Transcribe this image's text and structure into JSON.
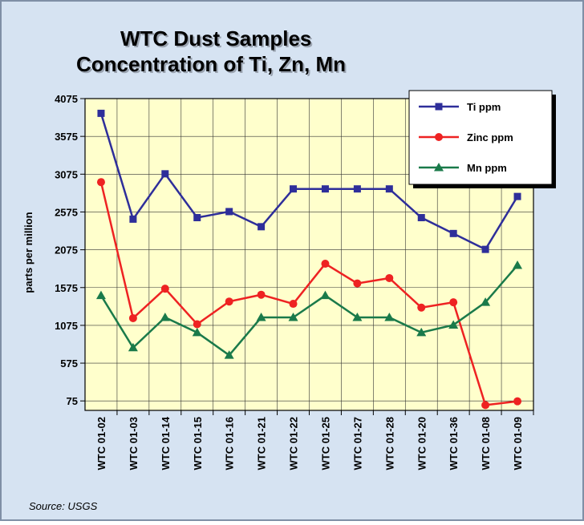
{
  "chart_data": {
    "type": "line",
    "title": "WTC Dust Samples",
    "subtitle": "Concentration of Ti, Zn, Mn",
    "y_label": "parts per million",
    "source": "Source:  USGS",
    "categories": [
      "WTC 01-02",
      "WTC 01-03",
      "WTC 01-14",
      "WTC 01-15",
      "WTC 01-16",
      "WTC 01-21",
      "WTC 01-22",
      "WTC 01-25",
      "WTC 01-27",
      "WTC 01-28",
      "WTC 01-20",
      "WTC 01-36",
      "WTC 01-08",
      "WTC 01-09"
    ],
    "series": [
      {
        "name": "Ti ppm",
        "color": "#2e2e9a",
        "marker": "square",
        "values": [
          3880,
          2480,
          3080,
          2500,
          2580,
          2380,
          2880,
          2880,
          2880,
          2880,
          2500,
          2290,
          2080,
          2780
        ]
      },
      {
        "name": "Zinc ppm",
        "color": "#ee2222",
        "marker": "circle",
        "values": [
          2970,
          1170,
          1560,
          1090,
          1390,
          1480,
          1360,
          1890,
          1630,
          1700,
          1310,
          1380,
          20,
          70
        ]
      },
      {
        "name": "Mn ppm",
        "color": "#1a7a4a",
        "marker": "triangle",
        "values": [
          1470,
          780,
          1180,
          980,
          680,
          1180,
          1180,
          1470,
          1180,
          1180,
          980,
          1080,
          1380,
          1870
        ]
      }
    ],
    "ylim": [
      -50,
      4075
    ],
    "yticks": [
      75,
      575,
      1075,
      1575,
      2075,
      2575,
      3075,
      3575,
      4075
    ],
    "grid": true,
    "legend": "top-right"
  }
}
